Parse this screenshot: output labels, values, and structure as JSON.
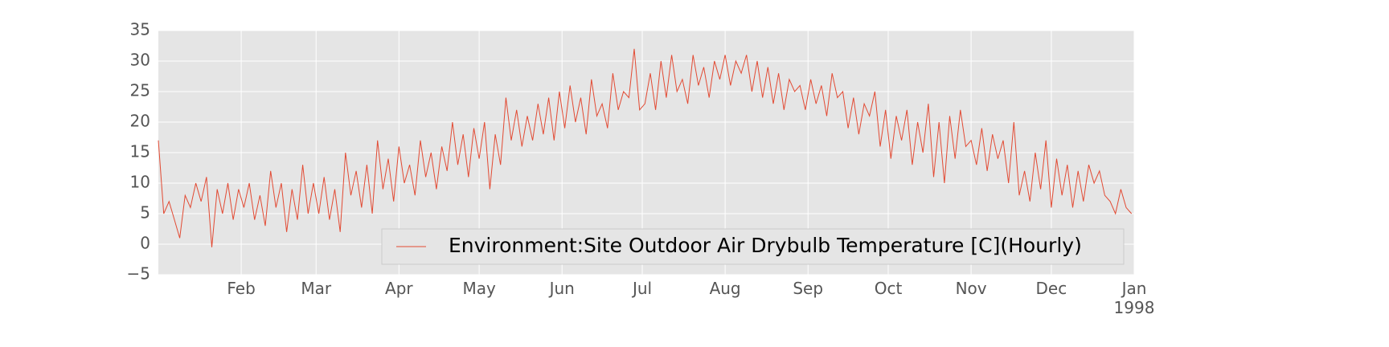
{
  "chart_data": {
    "type": "line",
    "series": [
      {
        "name": "Environment:Site Outdoor Air Drybulb Temperature [C](Hourly)",
        "color": "#e24a33",
        "x": [
          0,
          2,
          4,
          6,
          8,
          10,
          12,
          14,
          16,
          18,
          20,
          22,
          24,
          26,
          28,
          30,
          32,
          34,
          36,
          38,
          40,
          42,
          44,
          46,
          48,
          50,
          52,
          54,
          56,
          58,
          60,
          62,
          64,
          66,
          68,
          70,
          72,
          74,
          76,
          78,
          80,
          82,
          84,
          86,
          88,
          90,
          92,
          94,
          96,
          98,
          100,
          102,
          104,
          106,
          108,
          110,
          112,
          114,
          116,
          118,
          120,
          122,
          124,
          126,
          128,
          130,
          132,
          134,
          136,
          138,
          140,
          142,
          144,
          146,
          148,
          150,
          152,
          154,
          156,
          158,
          160,
          162,
          164,
          166,
          168,
          170,
          172,
          174,
          176,
          178,
          180,
          182,
          184,
          186,
          188,
          190,
          192,
          194,
          196,
          198,
          200,
          202,
          204,
          206,
          208,
          210,
          212,
          214,
          216,
          218,
          220,
          222,
          224,
          226,
          228,
          230,
          232,
          234,
          236,
          238,
          240,
          242,
          244,
          246,
          248,
          250,
          252,
          254,
          256,
          258,
          260,
          262,
          264,
          266,
          268,
          270,
          272,
          274,
          276,
          278,
          280,
          282,
          284,
          286,
          288,
          290,
          292,
          294,
          296,
          298,
          300,
          302,
          304,
          306,
          308,
          310,
          312,
          314,
          316,
          318,
          320,
          322,
          324,
          326,
          328,
          330,
          332,
          334,
          336,
          338,
          340,
          342,
          344,
          346,
          348,
          350,
          352,
          354,
          356,
          358,
          360,
          362,
          364
        ],
        "values": [
          17,
          5,
          7,
          4,
          1,
          8,
          6,
          10,
          7,
          11,
          -0.5,
          9,
          5,
          10,
          4,
          9,
          6,
          10,
          4,
          8,
          3,
          12,
          6,
          10,
          2,
          9,
          4,
          13,
          5,
          10,
          5,
          11,
          4,
          9,
          2,
          15,
          8,
          12,
          6,
          13,
          5,
          17,
          9,
          14,
          7,
          16,
          10,
          13,
          8,
          17,
          11,
          15,
          9,
          16,
          12,
          20,
          13,
          18,
          11,
          19,
          14,
          20,
          9,
          18,
          13,
          24,
          17,
          22,
          16,
          21,
          17,
          23,
          18,
          24,
          17,
          25,
          19,
          26,
          20,
          24,
          18,
          27,
          21,
          23,
          19,
          28,
          22,
          25,
          24,
          32,
          22,
          23,
          28,
          22,
          30,
          24,
          31,
          25,
          27,
          23,
          31,
          26,
          29,
          24,
          30,
          27,
          31,
          26,
          30,
          28,
          31,
          25,
          30,
          24,
          29,
          23,
          28,
          22,
          27,
          25,
          26,
          22,
          27,
          23,
          26,
          21,
          28,
          24,
          25,
          19,
          24,
          18,
          23,
          21,
          25,
          16,
          22,
          14,
          21,
          17,
          22,
          13,
          20,
          15,
          23,
          11,
          20,
          10,
          21,
          14,
          22,
          16,
          17,
          13,
          19,
          12,
          18,
          14,
          17,
          10,
          20,
          8,
          12,
          7,
          15,
          9,
          17,
          6,
          14,
          8,
          13,
          6,
          12,
          7,
          13,
          10,
          12,
          8,
          7,
          5,
          9,
          6,
          5
        ]
      }
    ],
    "xlim": [
      0,
      365
    ],
    "xticks": [
      {
        "value": 31,
        "label": "Feb"
      },
      {
        "value": 59,
        "label": "Mar"
      },
      {
        "value": 90,
        "label": "Apr"
      },
      {
        "value": 120,
        "label": "May"
      },
      {
        "value": 151,
        "label": "Jun"
      },
      {
        "value": 181,
        "label": "Jul"
      },
      {
        "value": 212,
        "label": "Aug"
      },
      {
        "value": 243,
        "label": "Sep"
      },
      {
        "value": 273,
        "label": "Oct"
      },
      {
        "value": 304,
        "label": "Nov"
      },
      {
        "value": 334,
        "label": "Dec"
      },
      {
        "value": 365,
        "label": "Jan\n1998"
      }
    ],
    "ylim": [
      -5,
      35
    ],
    "yticks": [
      {
        "value": -5,
        "label": "−5"
      },
      0,
      5,
      10,
      15,
      20,
      25,
      30,
      35
    ],
    "grid": true,
    "legend": "lower right"
  }
}
